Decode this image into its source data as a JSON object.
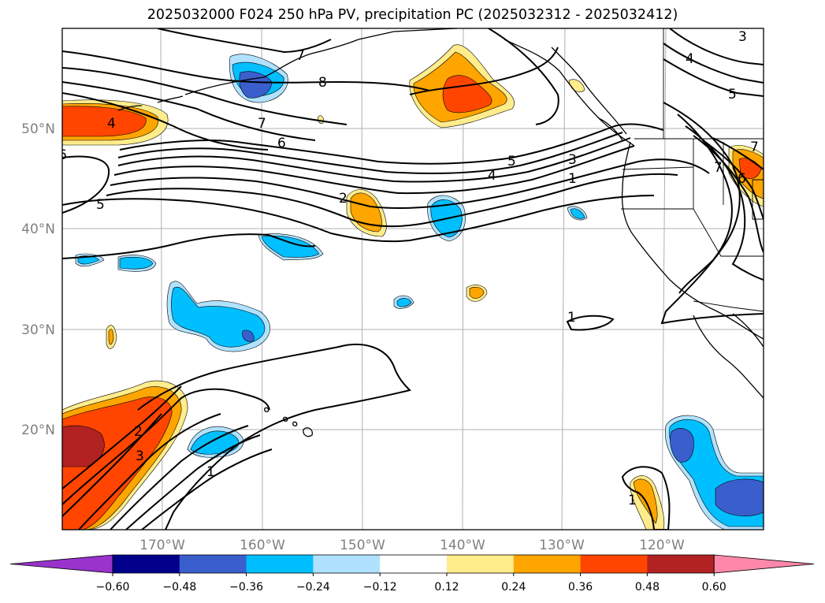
{
  "title": "2025032000 F024 250 hPa PV, precipitation PC (2025032312 - 2025032412)",
  "map": {
    "lon_labels": [
      "170°W",
      "160°W",
      "150°W",
      "140°W",
      "130°W",
      "120°W"
    ],
    "lat_labels": [
      "50°N",
      "40°N",
      "30°N",
      "20°N"
    ],
    "contour_labels": [
      "7",
      "8",
      "7",
      "6",
      "4",
      "6",
      "5",
      "2",
      "5",
      "4",
      "3",
      "1",
      "3",
      "4",
      "5",
      "7",
      "7",
      "6",
      "2",
      "3",
      "1",
      "1",
      "1"
    ]
  },
  "colorbar": {
    "colors": [
      "#9933cc",
      "#00008b",
      "#3a5fcd",
      "#00bfff",
      "#b0e2ff",
      "#ffffff",
      "#ffec8b",
      "#ffa500",
      "#ff4500",
      "#b22222",
      "#ff88aa"
    ],
    "ticks": [
      "−0.60",
      "−0.48",
      "−0.36",
      "−0.24",
      "−0.12",
      "0.12",
      "0.24",
      "0.36",
      "0.48",
      "0.60"
    ]
  }
}
